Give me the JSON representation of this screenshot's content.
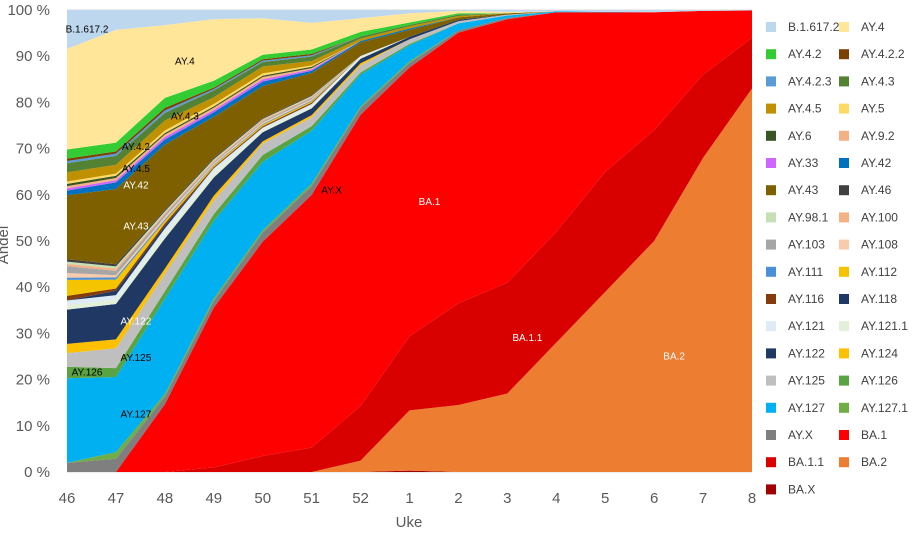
{
  "chart_data": {
    "type": "area",
    "stacked": "percent",
    "xlabel": "Uke",
    "ylabel": "Andel",
    "categories": [
      "46",
      "47",
      "48",
      "49",
      "50",
      "51",
      "52",
      "1",
      "2",
      "3",
      "4",
      "5",
      "6",
      "7",
      "8"
    ],
    "y_ticks": [
      "0 %",
      "10 %",
      "20 %",
      "30 %",
      "40 %",
      "50 %",
      "60 %",
      "70 %",
      "80 %",
      "90 %",
      "100 %"
    ],
    "ylim": [
      0,
      100
    ],
    "legend_position": "right",
    "series": [
      {
        "name": "BA.X",
        "color": "#a00000",
        "values": [
          0,
          0,
          0,
          0,
          0,
          0,
          0,
          0.3,
          0,
          0,
          0,
          0,
          0,
          0,
          0
        ]
      },
      {
        "name": "BA.2",
        "color": "#ed7d31",
        "values": [
          0,
          0,
          0,
          0,
          0,
          0,
          2.5,
          13,
          14.5,
          17,
          28,
          39,
          50,
          68,
          83
        ]
      },
      {
        "name": "BA.1.1",
        "color": "#d90000",
        "values": [
          0,
          0,
          0,
          1,
          3.5,
          5.5,
          12,
          16,
          22,
          24,
          24,
          26,
          24,
          18,
          11
        ]
      },
      {
        "name": "BA.1",
        "color": "#ff0000",
        "values": [
          0,
          0,
          13.5,
          35,
          47,
          57,
          64,
          58,
          58.5,
          57,
          47.5,
          34.5,
          25.5,
          13.8,
          5.9
        ]
      },
      {
        "name": "AY.X",
        "color": "#7f7f7f",
        "values": [
          2,
          3,
          1.5,
          1.5,
          2,
          2,
          1.5,
          1,
          0.5,
          0.3,
          0,
          0,
          0,
          0,
          0
        ]
      },
      {
        "name": "AY.127.1",
        "color": "#70ad47",
        "values": [
          0,
          1.5,
          0.5,
          0.5,
          0.5,
          0.5,
          0.3,
          0.3,
          0,
          0,
          0,
          0,
          0,
          0,
          0
        ]
      },
      {
        "name": "AY.127",
        "color": "#00b0f0",
        "values": [
          18.5,
          17,
          19,
          17,
          15,
          12,
          7,
          3.5,
          1.5,
          0.5,
          0.2,
          0.1,
          0,
          0,
          0
        ]
      },
      {
        "name": "AY.126",
        "color": "#5aa342",
        "values": [
          2.5,
          2,
          1.5,
          1.5,
          1.5,
          1,
          0.5,
          0.3,
          0,
          0,
          0,
          0,
          0,
          0,
          0
        ]
      },
      {
        "name": "AY.125",
        "color": "#bfbfbf",
        "values": [
          3,
          4.5,
          3.5,
          3,
          2.5,
          2,
          1.5,
          1,
          0.5,
          0.2,
          0,
          0,
          0,
          0,
          0
        ]
      },
      {
        "name": "AY.124",
        "color": "#ffc000",
        "values": [
          2,
          2,
          1,
          1,
          0.5,
          0.5,
          0.5,
          0,
          0,
          0,
          0,
          0,
          0,
          0,
          0
        ]
      },
      {
        "name": "AY.122",
        "color": "#203864",
        "values": [
          7.5,
          8,
          6,
          4,
          2,
          1.5,
          1,
          0.5,
          0.3,
          0,
          0,
          0,
          0,
          0,
          0
        ]
      },
      {
        "name": "AY.121.1",
        "color": "#e2f0d9",
        "values": [
          1,
          1,
          1,
          1,
          0.5,
          0.5,
          0.3,
          0,
          0,
          0,
          0,
          0,
          0,
          0,
          0
        ]
      },
      {
        "name": "AY.121",
        "color": "#deebf7",
        "values": [
          1,
          1,
          1,
          1,
          0.5,
          0.5,
          0.3,
          0,
          0,
          0,
          0,
          0,
          0,
          0,
          0
        ]
      },
      {
        "name": "AY.118",
        "color": "#1f3864",
        "values": [
          0,
          1,
          0.5,
          0,
          0,
          0,
          0,
          0,
          0,
          0,
          0,
          0,
          0,
          0,
          0
        ]
      },
      {
        "name": "AY.116",
        "color": "#843c0c",
        "values": [
          1,
          0.5,
          0.5,
          0.3,
          0.3,
          0.3,
          0,
          0,
          0,
          0,
          0,
          0,
          0,
          0,
          0
        ]
      },
      {
        "name": "AY.112",
        "color": "#f4c400",
        "values": [
          3.5,
          2,
          0.5,
          0.3,
          0.3,
          0.3,
          0,
          0,
          0,
          0,
          0,
          0,
          0,
          0,
          0
        ]
      },
      {
        "name": "AY.111",
        "color": "#4a90d9",
        "values": [
          0.5,
          0.5,
          0.3,
          0.2,
          0.2,
          0.2,
          0,
          0,
          0,
          0,
          0,
          0,
          0,
          0,
          0
        ]
      },
      {
        "name": "AY.108",
        "color": "#f8cbad",
        "values": [
          1,
          0.5,
          0.5,
          0.3,
          0.3,
          0.3,
          0,
          0,
          0,
          0,
          0,
          0,
          0,
          0,
          0
        ]
      },
      {
        "name": "AY.103",
        "color": "#a6a6a6",
        "values": [
          1.5,
          1,
          0.5,
          0.3,
          0.3,
          0.3,
          0,
          0,
          0,
          0,
          0,
          0,
          0,
          0,
          0
        ]
      },
      {
        "name": "AY.100",
        "color": "#f4b183",
        "values": [
          0.5,
          0.5,
          0.3,
          0.3,
          0.3,
          0.2,
          0,
          0,
          0,
          0,
          0,
          0,
          0,
          0,
          0
        ]
      },
      {
        "name": "AY.98.1",
        "color": "#c5e0b4",
        "values": [
          0.5,
          0.5,
          0.3,
          0.3,
          0.2,
          0.2,
          0,
          0,
          0,
          0,
          0,
          0,
          0,
          0,
          0
        ]
      },
      {
        "name": "AY.46",
        "color": "#404040",
        "values": [
          0.5,
          0.5,
          0.3,
          0.3,
          0.2,
          0.2,
          0,
          0,
          0,
          0,
          0,
          0,
          0,
          0,
          0
        ]
      },
      {
        "name": "AY.43",
        "color": "#7f6000",
        "values": [
          14,
          17,
          13,
          9,
          7,
          5,
          3,
          1.5,
          0.5,
          0.3,
          0,
          0,
          0,
          0,
          0
        ]
      },
      {
        "name": "AY.42",
        "color": "#0070c0",
        "values": [
          1,
          1.5,
          1,
          1,
          1,
          0.5,
          0.3,
          0.3,
          0,
          0,
          0,
          0,
          0,
          0,
          0
        ]
      },
      {
        "name": "AY.33",
        "color": "#cc66ff",
        "values": [
          0.5,
          0.5,
          0.5,
          0.5,
          0.5,
          0.3,
          0,
          0,
          0,
          0,
          0,
          0,
          0,
          0,
          0
        ]
      },
      {
        "name": "AY.9.2",
        "color": "#f4b183",
        "values": [
          0.5,
          0.5,
          0.5,
          0.5,
          0.5,
          0.3,
          0,
          0,
          0,
          0,
          0,
          0,
          0,
          0,
          0
        ]
      },
      {
        "name": "AY.6",
        "color": "#375623",
        "values": [
          0.5,
          0.5,
          0.3,
          0.3,
          0.3,
          0.3,
          0,
          0,
          0,
          0,
          0,
          0,
          0,
          0,
          0
        ]
      },
      {
        "name": "AY.5",
        "color": "#ffd966",
        "values": [
          0.5,
          0.5,
          0.5,
          0.5,
          0.5,
          0.3,
          0,
          0,
          0,
          0,
          0,
          0,
          0,
          0,
          0
        ]
      },
      {
        "name": "AY.4.5",
        "color": "#bf9000",
        "values": [
          2,
          2,
          2,
          1.5,
          1.5,
          1,
          0.5,
          0.5,
          0.3,
          0,
          0,
          0,
          0,
          0,
          0
        ]
      },
      {
        "name": "AY.4.3",
        "color": "#548235",
        "values": [
          2,
          2,
          1.5,
          1.5,
          1,
          1,
          0.5,
          0.3,
          0.3,
          0,
          0,
          0,
          0,
          0,
          0
        ]
      },
      {
        "name": "AY.4.2.3",
        "color": "#5b9bd5",
        "values": [
          0.5,
          0.5,
          0.5,
          0.3,
          0.3,
          0.3,
          0,
          0,
          0,
          0,
          0,
          0,
          0,
          0,
          0
        ]
      },
      {
        "name": "AY.4.2.2",
        "color": "#7b3f00",
        "values": [
          0.5,
          0.5,
          0.5,
          0.3,
          0.3,
          0.3,
          0,
          0,
          0,
          0,
          0,
          0,
          0,
          0,
          0
        ]
      },
      {
        "name": "AY.4.2",
        "color": "#33cc33",
        "values": [
          2,
          2,
          2,
          1.5,
          1,
          1,
          1,
          0.5,
          0.3,
          0,
          0,
          0,
          0,
          0,
          0
        ]
      },
      {
        "name": "AY.4",
        "color": "#ffe699",
        "values": [
          22,
          25.5,
          14.5,
          13.5,
          8,
          6,
          3,
          2,
          0.5,
          0.3,
          0,
          0,
          0,
          0,
          0
        ]
      },
      {
        "name": "B.1.617.2",
        "color": "#bdd7ee",
        "values": [
          8.5,
          4.5,
          3,
          2,
          1.8,
          2.9,
          1.8,
          0.7,
          0.2,
          0.4,
          0.3,
          0.4,
          0.5,
          0.2,
          0.1
        ]
      }
    ],
    "legend_order": [
      "B.1.617.2",
      "AY.4",
      "AY.4.2",
      "AY.4.2.2",
      "AY.4.2.3",
      "AY.4.3",
      "AY.4.5",
      "AY.5",
      "AY.6",
      "AY.9.2",
      "AY.33",
      "AY.42",
      "AY.43",
      "AY.46",
      "AY.98.1",
      "AY.100",
      "AY.103",
      "AY.108",
      "AY.111",
      "AY.112",
      "AY.116",
      "AY.118",
      "AY.121",
      "AY.121.1",
      "AY.122",
      "AY.124",
      "AY.125",
      "AY.126",
      "AY.127",
      "AY.127.1",
      "AY.X",
      "BA.1",
      "BA.1.1",
      "BA.2",
      "BA.X"
    ],
    "annotations": [
      {
        "text": "B.1.617.2",
        "series": "B.1.617.2",
        "x": "46",
        "color": "#000000"
      },
      {
        "text": "AY.4",
        "series": "AY.4",
        "x": "48",
        "color": "#000000"
      },
      {
        "text": "AY.4.2",
        "series": "AY.4.2",
        "x": "47",
        "color": "#000000"
      },
      {
        "text": "AY.4.3",
        "series": "AY.4.3",
        "x": "48",
        "color": "#000000"
      },
      {
        "text": "AY.4.5",
        "series": "AY.4.5",
        "x": "47",
        "color": "#000000"
      },
      {
        "text": "AY.42",
        "series": "AY.42",
        "x": "47",
        "color": "#ffffff"
      },
      {
        "text": "AY.43",
        "series": "AY.43",
        "x": "47",
        "color": "#ffffff"
      },
      {
        "text": "AY.122",
        "series": "AY.122",
        "x": "47",
        "color": "#ffffff"
      },
      {
        "text": "AY.125",
        "series": "AY.125",
        "x": "47",
        "color": "#000000"
      },
      {
        "text": "AY.126",
        "series": "AY.126",
        "x": "46",
        "color": "#000000"
      },
      {
        "text": "AY.127",
        "series": "AY.127",
        "x": "47",
        "color": "#000000"
      },
      {
        "text": "AY.X",
        "series": "AY.X",
        "x": "51",
        "color": "#000000"
      },
      {
        "text": "BA.1",
        "series": "BA.1",
        "x": "1",
        "color": "#ffffff"
      },
      {
        "text": "BA.1.1",
        "series": "BA.1.1",
        "x": "3",
        "color": "#ffffff"
      },
      {
        "text": "BA.2",
        "series": "BA.2",
        "x": "6",
        "color": "#ffffff"
      }
    ]
  }
}
